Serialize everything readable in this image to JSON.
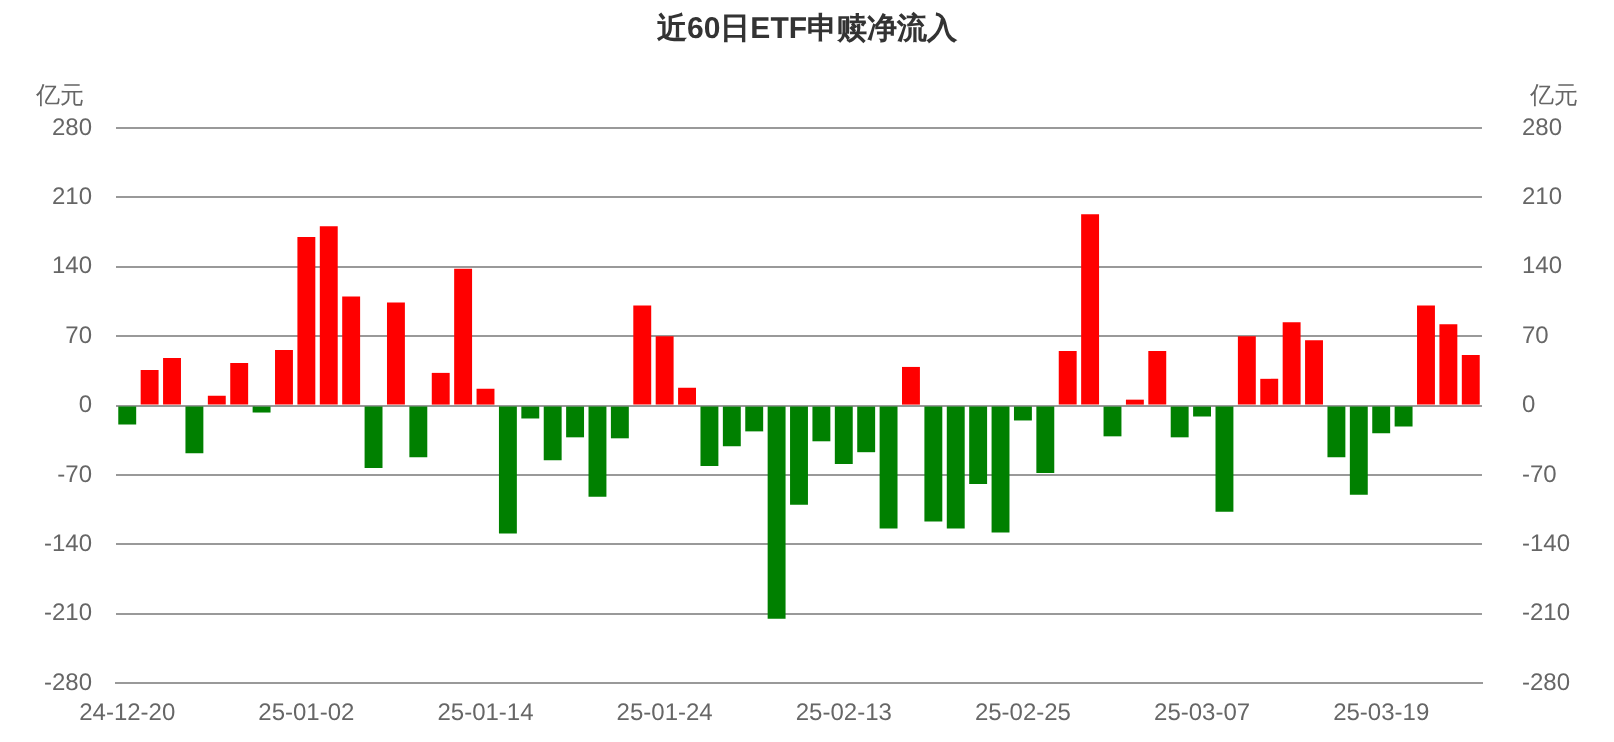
{
  "chart_data": {
    "type": "bar",
    "title": "近60日ETF申赎净流入",
    "ylabel": "亿元",
    "y2label": "亿元",
    "categories": [
      "24-12-20",
      null,
      null,
      null,
      null,
      null,
      null,
      null,
      "25-01-02",
      null,
      null,
      null,
      null,
      null,
      null,
      null,
      "25-01-14",
      null,
      null,
      null,
      null,
      null,
      null,
      null,
      "25-01-24",
      null,
      null,
      null,
      null,
      null,
      null,
      null,
      "25-02-13",
      null,
      null,
      null,
      null,
      null,
      null,
      null,
      "25-02-25",
      null,
      null,
      null,
      null,
      null,
      null,
      null,
      "25-03-07",
      null,
      null,
      null,
      null,
      null,
      null,
      null,
      "25-03-19",
      null,
      null,
      null,
      null
    ],
    "values": [
      -19,
      36,
      48,
      -48,
      10,
      43,
      -7,
      56,
      170,
      181,
      110,
      -63,
      104,
      -52,
      33,
      138,
      17,
      -129,
      -13,
      -55,
      -32,
      -92,
      -33,
      101,
      70,
      18,
      -61,
      -41,
      -26,
      -215,
      -100,
      -36,
      -59,
      -47,
      -124,
      39,
      -117,
      -124,
      -79,
      -128,
      -15,
      -68,
      55,
      193,
      -31,
      6,
      55,
      -32,
      -11,
      -107,
      70,
      27,
      84,
      66,
      -52,
      -90,
      -28,
      -21,
      101,
      82,
      51
    ],
    "colors": [
      "#008000",
      "#ff0000",
      "#ff0000",
      "#008000",
      "#ff0000",
      "#ff0000",
      "#008000",
      "#ff0000",
      "#ff0000",
      "#ff0000",
      "#ff0000",
      "#008000",
      "#ff0000",
      "#008000",
      "#ff0000",
      "#ff0000",
      "#ff0000",
      "#008000",
      "#008000",
      "#008000",
      "#008000",
      "#008000",
      "#008000",
      "#ff0000",
      "#ff0000",
      "#ff0000",
      "#008000",
      "#008000",
      "#008000",
      "#008000",
      "#008000",
      "#008000",
      "#008000",
      "#008000",
      "#008000",
      "#ff0000",
      "#008000",
      "#008000",
      "#008000",
      "#008000",
      "#008000",
      "#008000",
      "#ff0000",
      "#ff0000",
      "#008000",
      "#ff0000",
      "#ff0000",
      "#008000",
      "#008000",
      "#008000",
      "#ff0000",
      "#ff0000",
      "#ff0000",
      "#ff0000",
      "#008000",
      "#008000",
      "#008000",
      "#008000",
      "#ff0000",
      "#ff0000",
      "#ff0000"
    ],
    "ylim": [
      -280,
      280
    ],
    "yticks": [
      -280,
      -210,
      -140,
      -70,
      0,
      70,
      140,
      210,
      280
    ],
    "y2lim": [
      -280,
      280
    ],
    "y2ticks": [
      -280,
      -210,
      -140,
      -70,
      0,
      70,
      140,
      210,
      280
    ],
    "grid": "y",
    "legend": false
  }
}
